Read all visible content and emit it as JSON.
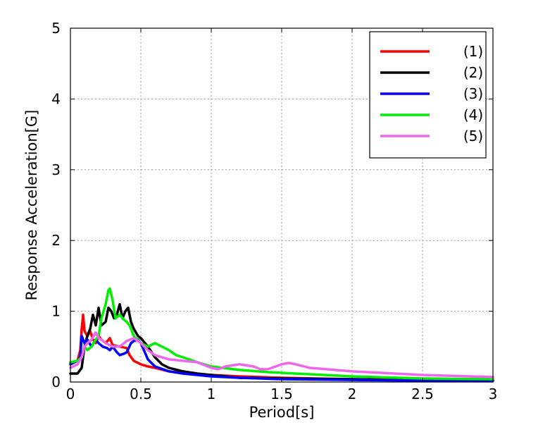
{
  "chart_data": {
    "type": "line",
    "title": "",
    "xlabel": "Period[s]",
    "ylabel": "Response Acceleration[G]",
    "xlim": [
      0,
      3
    ],
    "ylim": [
      0,
      5
    ],
    "xticks": [
      0,
      0.5,
      1,
      1.5,
      2,
      2.5,
      3
    ],
    "xtick_labels": [
      "0",
      "0.5",
      "1",
      "1.5",
      "2",
      "2.5",
      "3"
    ],
    "yticks": [
      0,
      1,
      2,
      3,
      4,
      5
    ],
    "ytick_labels": [
      "0",
      "1",
      "2",
      "3",
      "4",
      "5"
    ],
    "grid": true,
    "legend_position": "top-right",
    "series": [
      {
        "name": "(1)",
        "color": "#ff0000",
        "x": [
          0,
          0.05,
          0.07,
          0.08,
          0.09,
          0.1,
          0.12,
          0.14,
          0.16,
          0.18,
          0.2,
          0.22,
          0.25,
          0.28,
          0.3,
          0.35,
          0.4,
          0.42,
          0.45,
          0.5,
          0.55,
          0.6,
          0.7,
          0.8,
          0.9,
          1,
          1.2,
          1.5,
          2,
          2.5,
          3
        ],
        "y": [
          0.27,
          0.3,
          0.45,
          0.75,
          0.95,
          0.72,
          0.65,
          0.72,
          0.6,
          0.55,
          0.65,
          0.6,
          0.55,
          0.62,
          0.52,
          0.5,
          0.48,
          0.38,
          0.3,
          0.25,
          0.22,
          0.2,
          0.15,
          0.13,
          0.11,
          0.1,
          0.08,
          0.06,
          0.04,
          0.03,
          0.03
        ]
      },
      {
        "name": "(2)",
        "color": "#000000",
        "x": [
          0,
          0.05,
          0.08,
          0.1,
          0.12,
          0.14,
          0.16,
          0.18,
          0.2,
          0.22,
          0.25,
          0.27,
          0.29,
          0.31,
          0.33,
          0.35,
          0.37,
          0.39,
          0.41,
          0.43,
          0.45,
          0.48,
          0.5,
          0.55,
          0.6,
          0.65,
          0.7,
          0.8,
          0.9,
          1,
          1.2,
          1.5,
          2,
          2.5,
          3
        ],
        "y": [
          0.12,
          0.12,
          0.2,
          0.5,
          0.65,
          0.75,
          0.95,
          0.8,
          1.05,
          0.8,
          0.85,
          1.05,
          1.0,
          0.9,
          0.95,
          1.1,
          0.9,
          1.0,
          1.05,
          0.85,
          0.75,
          0.65,
          0.62,
          0.5,
          0.35,
          0.25,
          0.2,
          0.15,
          0.12,
          0.1,
          0.06,
          0.05,
          0.04,
          0.03,
          0.02
        ]
      },
      {
        "name": "(3)",
        "color": "#0000ff",
        "x": [
          0,
          0.05,
          0.07,
          0.08,
          0.1,
          0.12,
          0.15,
          0.18,
          0.2,
          0.23,
          0.26,
          0.28,
          0.3,
          0.33,
          0.35,
          0.38,
          0.4,
          0.43,
          0.45,
          0.48,
          0.5,
          0.55,
          0.6,
          0.7,
          0.8,
          0.9,
          1,
          1.2,
          1.5,
          2,
          2.5,
          3
        ],
        "y": [
          0.25,
          0.3,
          0.35,
          0.65,
          0.55,
          0.6,
          0.5,
          0.6,
          0.55,
          0.5,
          0.48,
          0.45,
          0.5,
          0.42,
          0.38,
          0.4,
          0.42,
          0.55,
          0.58,
          0.6,
          0.55,
          0.32,
          0.22,
          0.15,
          0.12,
          0.1,
          0.08,
          0.06,
          0.04,
          0.03,
          0.02,
          0.02
        ]
      },
      {
        "name": "(4)",
        "color": "#00ee00",
        "x": [
          0,
          0.05,
          0.08,
          0.1,
          0.12,
          0.15,
          0.18,
          0.2,
          0.22,
          0.25,
          0.27,
          0.28,
          0.3,
          0.32,
          0.35,
          0.38,
          0.4,
          0.42,
          0.45,
          0.5,
          0.55,
          0.6,
          0.65,
          0.7,
          0.75,
          0.8,
          0.9,
          1,
          1.2,
          1.4,
          1.6,
          1.8,
          2,
          2.5,
          3
        ],
        "y": [
          0.28,
          0.3,
          0.35,
          0.5,
          0.45,
          0.5,
          0.6,
          0.65,
          0.9,
          1.1,
          1.3,
          1.32,
          1.15,
          0.9,
          0.95,
          0.88,
          0.85,
          0.8,
          0.65,
          0.55,
          0.5,
          0.55,
          0.5,
          0.45,
          0.38,
          0.35,
          0.28,
          0.22,
          0.17,
          0.14,
          0.12,
          0.1,
          0.08,
          0.05,
          0.04
        ]
      },
      {
        "name": "(5)",
        "color": "#ee66ee",
        "x": [
          0,
          0.05,
          0.08,
          0.1,
          0.12,
          0.15,
          0.18,
          0.2,
          0.22,
          0.25,
          0.3,
          0.35,
          0.4,
          0.45,
          0.5,
          0.55,
          0.6,
          0.65,
          0.7,
          0.8,
          0.9,
          1,
          1.05,
          1.1,
          1.2,
          1.3,
          1.35,
          1.4,
          1.5,
          1.55,
          1.6,
          1.7,
          2,
          2.5,
          3
        ],
        "y": [
          0.2,
          0.25,
          0.35,
          0.5,
          0.55,
          0.6,
          0.7,
          0.62,
          0.6,
          0.55,
          0.5,
          0.5,
          0.58,
          0.62,
          0.55,
          0.45,
          0.38,
          0.35,
          0.32,
          0.3,
          0.28,
          0.2,
          0.18,
          0.22,
          0.25,
          0.22,
          0.18,
          0.18,
          0.25,
          0.27,
          0.25,
          0.2,
          0.15,
          0.1,
          0.07
        ]
      }
    ]
  }
}
